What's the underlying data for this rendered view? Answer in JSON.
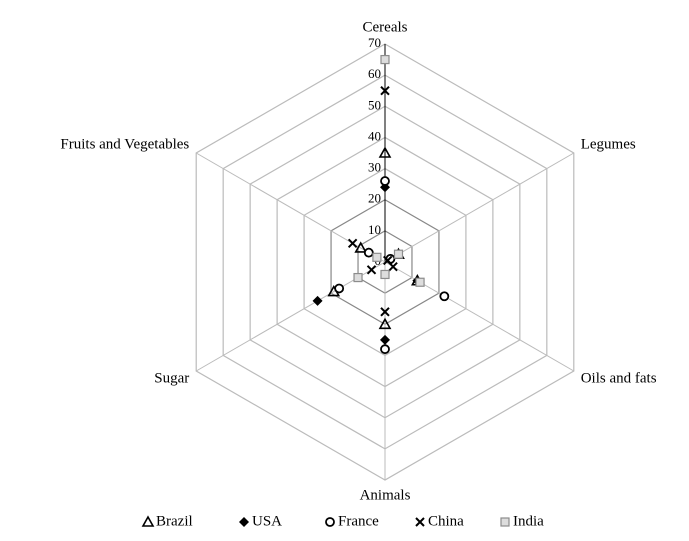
{
  "chart_data": {
    "type": "radar",
    "categories": [
      "Cereals",
      "Legumes",
      "Oils and fats",
      "Animals",
      "Sugar",
      "Fruits and Vegetables"
    ],
    "series": [
      {
        "name": "Brazil",
        "marker": "triangle",
        "color": "#000000",
        "values": [
          35,
          5,
          12,
          20,
          19,
          9
        ]
      },
      {
        "name": "USA",
        "marker": "diamond",
        "color": "#000000",
        "values": [
          24,
          2,
          12,
          25,
          25,
          6
        ]
      },
      {
        "name": "France",
        "marker": "circle",
        "color": "#000000",
        "values": [
          26,
          2,
          22,
          28,
          17,
          6
        ]
      },
      {
        "name": "China",
        "marker": "x",
        "color": "#000000",
        "values": [
          55,
          1,
          3,
          16,
          5,
          12
        ]
      },
      {
        "name": "India",
        "marker": "square",
        "color": "#8c8c8c",
        "values": [
          65,
          5,
          13,
          4,
          10,
          3
        ]
      }
    ],
    "rlim": [
      0,
      70
    ],
    "rticks": [
      0,
      10,
      20,
      30,
      40,
      50,
      60,
      70
    ],
    "grid": true,
    "legend": "bottom"
  }
}
